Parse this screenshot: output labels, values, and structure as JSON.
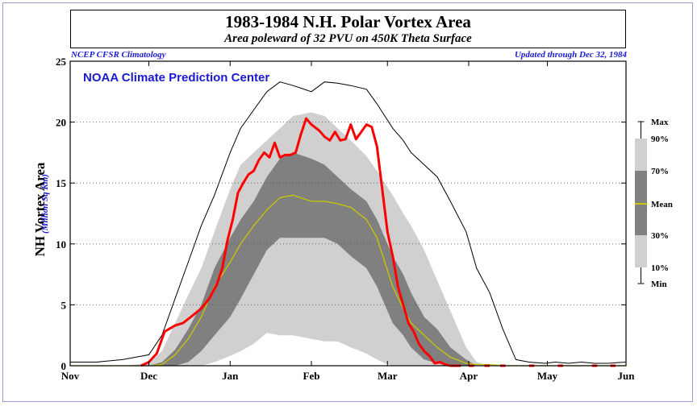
{
  "header": {
    "title": "1983-1984 N.H. Polar Vortex Area",
    "subtitle": "Area poleward of 32 PVU on 450K Theta Surface",
    "note_left": "NCEP CFSR Climatology",
    "note_right": "Updated through Dec 32, 1984",
    "watermark": "NOAA Climate Prediction Center"
  },
  "axes": {
    "ylabel": "NH Vortex Area",
    "ylabel_unit": "(Million Sq Km)"
  },
  "legend": {
    "items": [
      "Max",
      "90%",
      "70%",
      "Mean",
      "30%",
      "10%",
      "Min"
    ]
  },
  "colors": {
    "current": "#ff0000",
    "mean": "#c8c800",
    "band_outer": "#d0d0d0",
    "band_inner": "#808080",
    "max_min": "#000000"
  },
  "chart_data": {
    "type": "area",
    "title": "1983-1984 N.H. Polar Vortex Area",
    "subtitle": "Area poleward of 32 PVU on 450K Theta Surface",
    "xlabel": "",
    "ylabel": "NH Vortex Area (Million Sq Km)",
    "x_tick_labels": [
      "Nov",
      "Dec",
      "Jan",
      "Feb",
      "Mar",
      "Apr",
      "May",
      "Jun"
    ],
    "y_tick_labels": [
      "0",
      "5",
      "10",
      "15",
      "20",
      "25"
    ],
    "x_unit": "days since Nov 1",
    "xlim": [
      0,
      212
    ],
    "ylim": [
      0,
      25
    ],
    "grid": true,
    "legend_position": "right",
    "x": [
      0,
      10,
      20,
      30,
      35,
      40,
      45,
      50,
      55,
      61,
      65,
      70,
      75,
      80,
      85,
      92,
      97,
      102,
      107,
      113,
      117,
      120,
      123,
      127,
      130,
      135,
      140,
      145,
      151,
      155,
      160,
      165,
      170,
      175,
      181,
      185,
      190,
      195,
      200,
      205,
      212
    ],
    "series": [
      {
        "name": "Max",
        "values": [
          0.3,
          0.3,
          0.5,
          0.9,
          2.5,
          5.5,
          8.5,
          11.5,
          14,
          17.5,
          19.5,
          21,
          22.5,
          23.3,
          23,
          22.5,
          23.3,
          23.2,
          23,
          22.7,
          21.5,
          20.5,
          19.5,
          18.5,
          17.5,
          16.5,
          15.5,
          13.5,
          11,
          8,
          6,
          3,
          0.5,
          0.3,
          0.2,
          0.3,
          0.2,
          0.3,
          0.2,
          0.2,
          0.3
        ]
      },
      {
        "name": "90%",
        "values": [
          0,
          0,
          0,
          0.2,
          1.2,
          3.5,
          5.8,
          8,
          11,
          14.5,
          16.5,
          17.5,
          18.5,
          19.5,
          20.5,
          20.8,
          20.5,
          19.5,
          18.5,
          17.2,
          16,
          15,
          14,
          12.5,
          11.5,
          9.5,
          7,
          4.5,
          1.5,
          0.3,
          0,
          0,
          0,
          0,
          0,
          0,
          0,
          0,
          0,
          0,
          0
        ]
      },
      {
        "name": "70%",
        "values": [
          0,
          0,
          0,
          0,
          0.3,
          1.3,
          3,
          5,
          8,
          10.5,
          12,
          13.5,
          15.5,
          17,
          17.5,
          17,
          16.5,
          15.5,
          14.5,
          13.5,
          12,
          10.5,
          9,
          7.5,
          6,
          4,
          3,
          1.5,
          0.5,
          0,
          0,
          0,
          0,
          0,
          0,
          0,
          0,
          0,
          0,
          0,
          0
        ]
      },
      {
        "name": "Mean",
        "values": [
          0,
          0,
          0,
          0,
          0.1,
          0.9,
          2.2,
          4,
          6.5,
          8.5,
          10,
          11.5,
          12.8,
          13.8,
          14,
          13.5,
          13.5,
          13.3,
          13,
          12,
          10.5,
          8.5,
          6.5,
          4.7,
          3.5,
          2.5,
          1.5,
          0.7,
          0.2,
          0.1,
          0.1,
          0,
          0,
          0,
          0,
          0,
          0,
          0,
          0,
          0,
          0
        ]
      },
      {
        "name": "30%",
        "values": [
          0,
          0,
          0,
          0,
          0,
          0,
          0.3,
          1.2,
          2.5,
          4,
          5.5,
          7.5,
          9.5,
          10.5,
          10.5,
          10.5,
          10.5,
          10,
          9,
          8,
          6.5,
          5,
          3.5,
          2.5,
          1.5,
          0.5,
          0.2,
          0,
          0,
          0,
          0,
          0,
          0,
          0,
          0,
          0,
          0,
          0,
          0,
          0,
          0
        ]
      },
      {
        "name": "10%",
        "values": [
          0,
          0,
          0,
          0,
          0,
          0,
          0,
          0,
          0.3,
          0.8,
          1.2,
          1.8,
          2.7,
          2.5,
          2.5,
          2.2,
          2,
          2,
          1.5,
          1,
          0.5,
          0.2,
          0,
          0,
          0,
          0,
          0,
          0,
          0,
          0,
          0,
          0,
          0,
          0,
          0,
          0,
          0,
          0,
          0,
          0,
          0
        ]
      },
      {
        "name": "Min",
        "values": [
          0,
          0,
          0,
          0,
          0,
          0,
          0,
          0,
          0,
          0,
          0,
          0,
          0,
          0,
          0,
          0,
          0,
          0,
          0,
          0,
          0,
          0,
          0,
          0,
          0,
          0,
          0,
          0,
          0,
          0,
          0,
          0,
          0,
          0,
          0,
          0,
          0,
          0,
          0,
          0,
          0
        ]
      }
    ],
    "current": {
      "name": "1983-1984",
      "x": [
        27,
        30,
        33,
        36,
        40,
        43,
        46,
        50,
        53,
        56,
        58,
        60,
        62,
        64,
        66,
        68,
        70,
        72,
        74,
        76,
        78,
        80,
        82,
        84,
        86,
        88,
        90,
        92,
        95,
        97,
        99,
        101,
        103,
        105,
        107,
        109,
        111,
        113,
        115,
        117,
        119,
        121,
        123,
        125,
        127,
        129,
        131,
        133,
        135,
        137,
        139,
        141,
        143,
        145,
        147,
        149
      ],
      "values": [
        0,
        0.3,
        1,
        2.8,
        3.3,
        3.5,
        4,
        4.7,
        5.5,
        6.7,
        8,
        10.3,
        12,
        14.2,
        15,
        15.7,
        16,
        16.9,
        17.5,
        17.1,
        18.3,
        17.1,
        17.3,
        17.3,
        17.5,
        19,
        20.3,
        19.8,
        19.3,
        18.8,
        18.5,
        19.2,
        18.5,
        18.6,
        19.8,
        18.6,
        19.2,
        19.8,
        19.6,
        18,
        14.5,
        11,
        9,
        6.5,
        5,
        3.5,
        2.8,
        1.8,
        1.2,
        0.8,
        0.2,
        0.3,
        0.1,
        0,
        0,
        0
      ]
    }
  }
}
